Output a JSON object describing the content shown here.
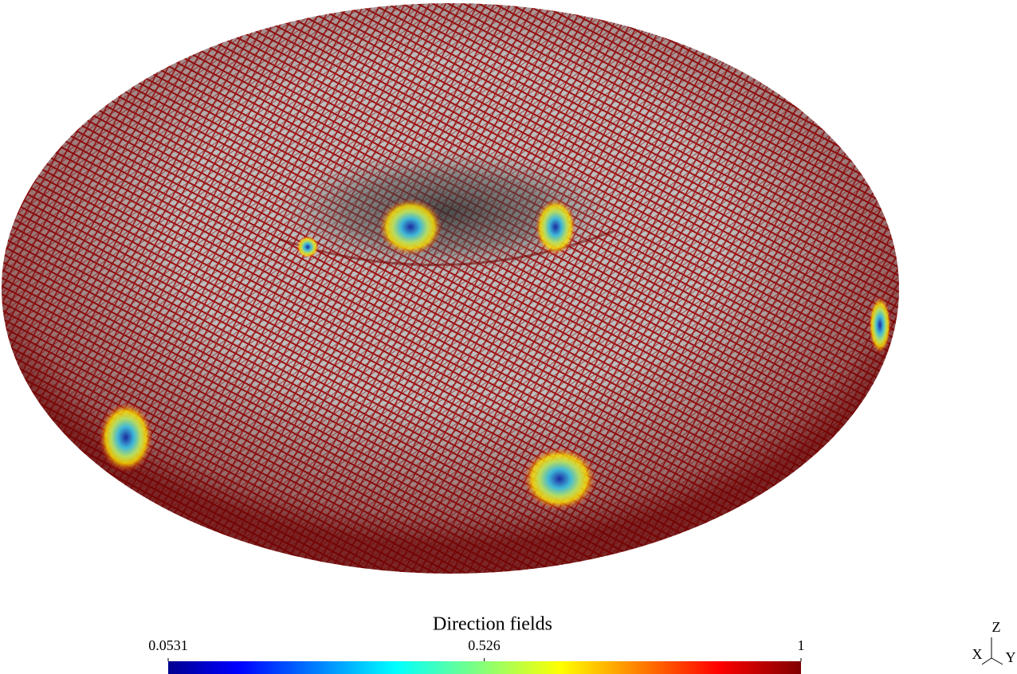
{
  "colorbar": {
    "title": "Direction fields",
    "range": [
      0.0531,
      1
    ],
    "ticks": [
      0.0531,
      0.526,
      1
    ]
  },
  "axes": {
    "z": "Z",
    "x": "X",
    "y": "Y"
  }
}
